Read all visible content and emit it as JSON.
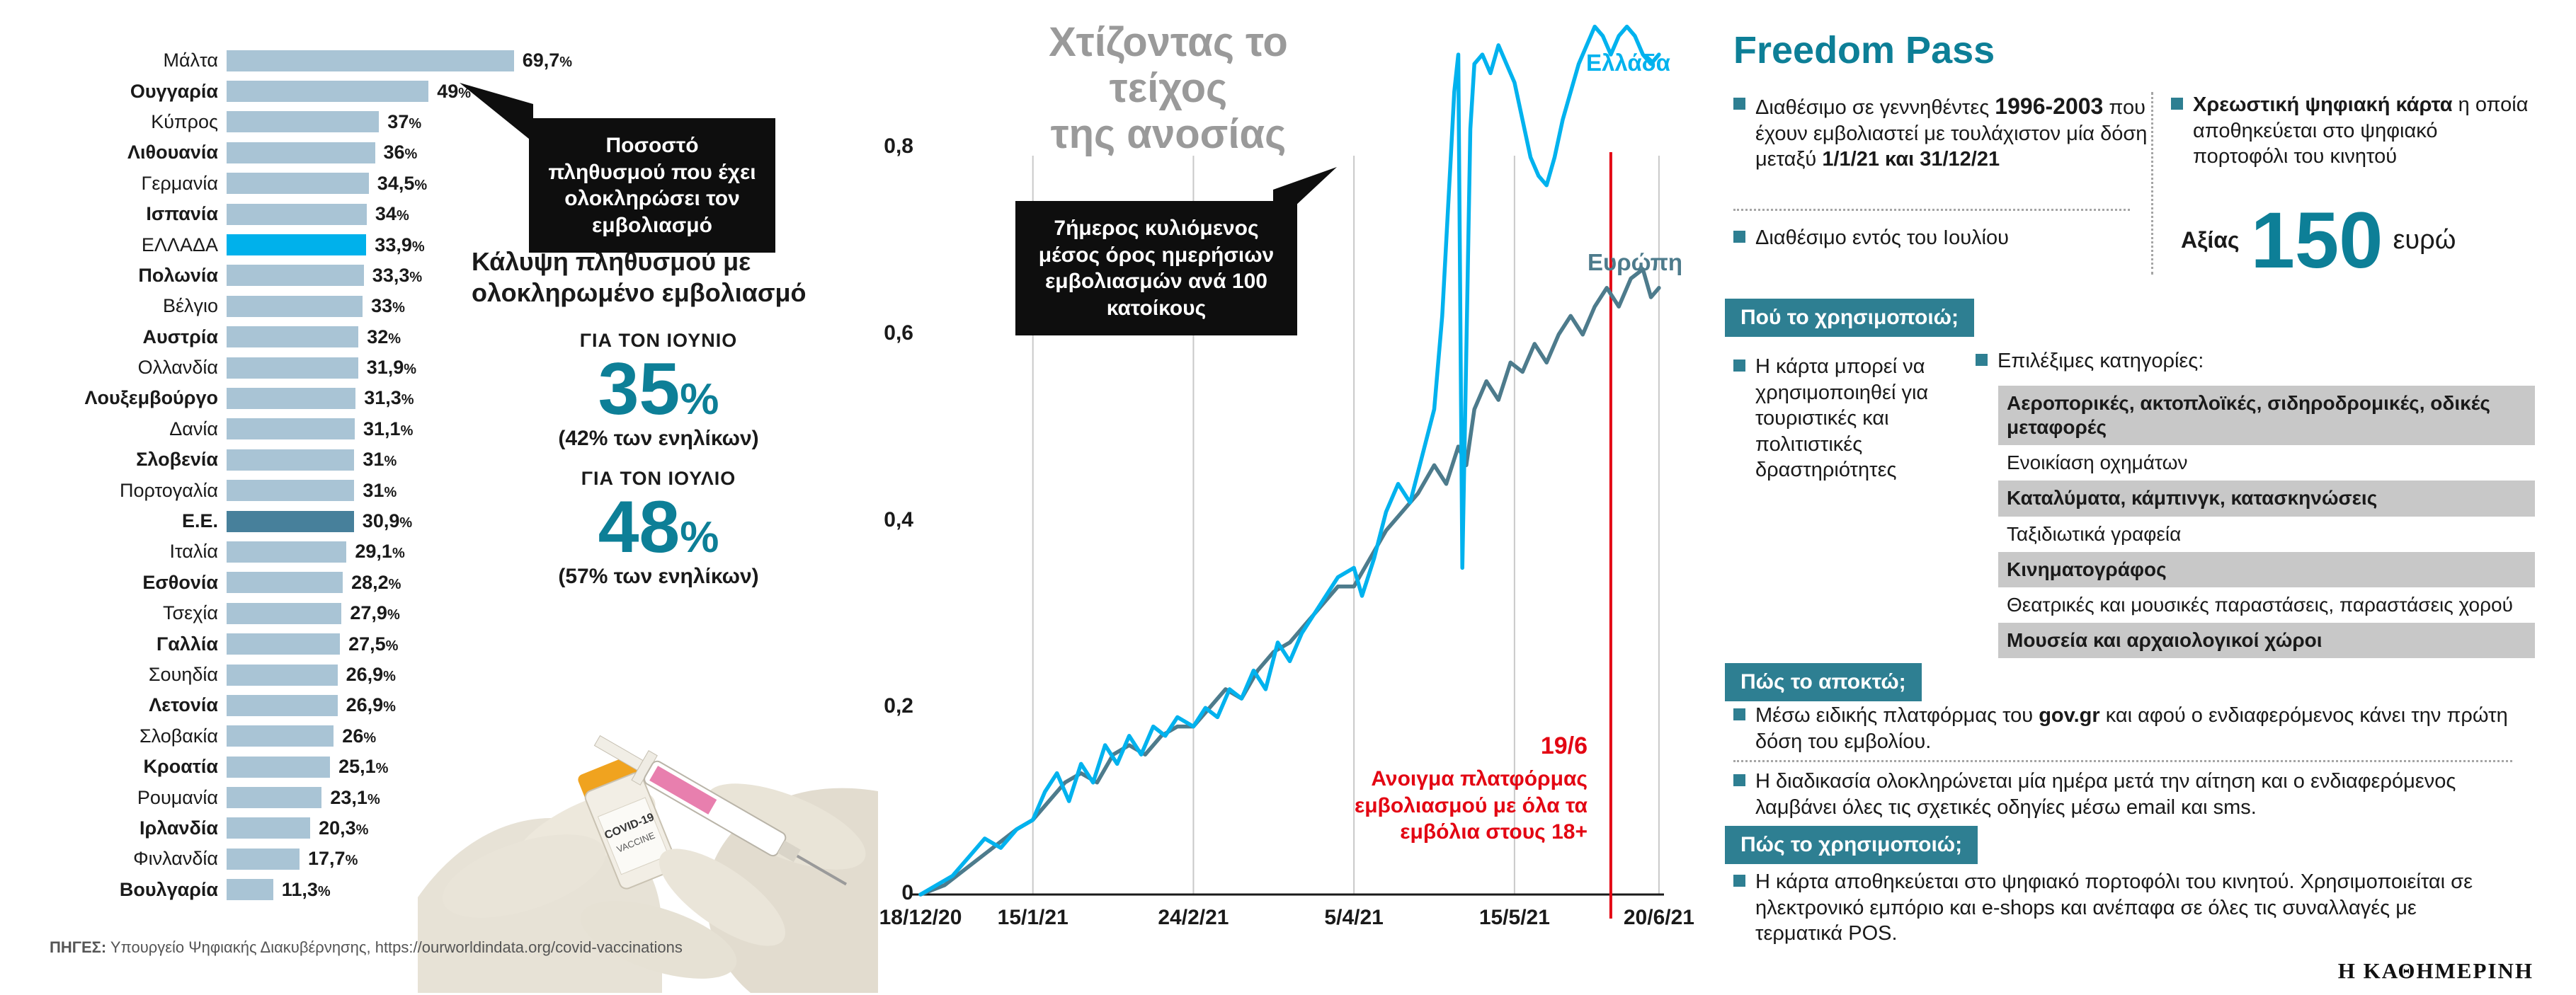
{
  "page": {
    "brand_logo": "Η ΚΑΘΗΜΕΡΙΝΗ",
    "sources_label": "ΠΗΓΕΣ:",
    "sources_text": " Υπουργείο Ψηφιακής Διακυβέρνησης, ",
    "sources_link": "https://ourworldindata.org/covid-vaccinations"
  },
  "colors": {
    "bar_default": "#a9c4d5",
    "bar_greece": "#00b1eb",
    "bar_eu": "#47809b",
    "teal": "#0d7f97",
    "badge_bg": "#2e7f92",
    "callout_bg": "#0e0e0e",
    "red": "#e30613",
    "title_gray": "#9a9a9a",
    "highlight_gray": "#c8c8c8",
    "line_greece": "#00b2ee",
    "line_europe": "#4d7b8c",
    "grid": "#c9c9c9",
    "axis": "#1a1a1a"
  },
  "chart_data": [
    {
      "id": "vaccination-completed-by-country",
      "type": "bar",
      "orientation": "horizontal",
      "callout": "Ποσοστό πληθυσμού που έχει ολοκληρώσει τον εμβολιασμό",
      "unit": "%",
      "xlim": [
        0,
        75
      ],
      "items": [
        {
          "name": "Μάλτα",
          "value": 69.7,
          "label": "69,7"
        },
        {
          "name": "Ουγγαρία",
          "value": 49,
          "label": "49"
        },
        {
          "name": "Κύπρος",
          "value": 37,
          "label": "37"
        },
        {
          "name": "Λιθουανία",
          "value": 36,
          "label": "36"
        },
        {
          "name": "Γερμανία",
          "value": 34.5,
          "label": "34,5"
        },
        {
          "name": "Ισπανία",
          "value": 34,
          "label": "34"
        },
        {
          "name": "ΕΛΛΑΔΑ",
          "value": 33.9,
          "label": "33,9",
          "highlight": "greece"
        },
        {
          "name": "Πολωνία",
          "value": 33.3,
          "label": "33,3"
        },
        {
          "name": "Βέλγιο",
          "value": 33,
          "label": "33"
        },
        {
          "name": "Αυστρία",
          "value": 32,
          "label": "32"
        },
        {
          "name": "Ολλανδία",
          "value": 31.9,
          "label": "31,9"
        },
        {
          "name": "Λουξεμβούργο",
          "value": 31.3,
          "label": "31,3"
        },
        {
          "name": "Δανία",
          "value": 31.1,
          "label": "31,1"
        },
        {
          "name": "Σλοβενία",
          "value": 31,
          "label": "31"
        },
        {
          "name": "Πορτογαλία",
          "value": 31,
          "label": "31"
        },
        {
          "name": "Ε.Ε.",
          "value": 30.9,
          "label": "30,9",
          "highlight": "eu"
        },
        {
          "name": "Ιταλία",
          "value": 29.1,
          "label": "29,1"
        },
        {
          "name": "Εσθονία",
          "value": 28.2,
          "label": "28,2"
        },
        {
          "name": "Τσεχία",
          "value": 27.9,
          "label": "27,9"
        },
        {
          "name": "Γαλλία",
          "value": 27.5,
          "label": "27,5"
        },
        {
          "name": "Σουηδία",
          "value": 26.9,
          "label": "26,9"
        },
        {
          "name": "Λετονία",
          "value": 26.9,
          "label": "26,9"
        },
        {
          "name": "Σλοβακία",
          "value": 26,
          "label": "26"
        },
        {
          "name": "Κροατία",
          "value": 25.1,
          "label": "25,1"
        },
        {
          "name": "Ρουμανία",
          "value": 23.1,
          "label": "23,1"
        },
        {
          "name": "Ιρλανδία",
          "value": 20.3,
          "label": "20,3"
        },
        {
          "name": "Φινλανδία",
          "value": 17.7,
          "label": "17,7"
        },
        {
          "name": "Βουλγαρία",
          "value": 11.3,
          "label": "11,3"
        }
      ]
    },
    {
      "id": "daily-vaccinations-rolling-average",
      "type": "line",
      "title_lines": [
        "Χτίζοντας το τείχος",
        "της ανοσίας"
      ],
      "note": "7ήμερος κυλιόμενος μέσος όρος ημερήσιων εμβολιασμών ανά 100 κατοίκους",
      "ylim": [
        0,
        0.95
      ],
      "grid": "vertical",
      "y_ticks": [
        {
          "v": 0,
          "label": "0"
        },
        {
          "v": 0.2,
          "label": "0,2"
        },
        {
          "v": 0.4,
          "label": "0,4"
        },
        {
          "v": 0.6,
          "label": "0,6"
        },
        {
          "v": 0.8,
          "label": "0,8"
        }
      ],
      "x_ticks": [
        {
          "day": 0,
          "label": "18/12/20"
        },
        {
          "day": 28,
          "label": "15/1/21"
        },
        {
          "day": 68,
          "label": "24/2/21"
        },
        {
          "day": 108,
          "label": "5/4/21"
        },
        {
          "day": 148,
          "label": "15/5/21"
        },
        {
          "day": 184,
          "label": "20/6/21"
        }
      ],
      "series": [
        {
          "name": "Ευρώπη",
          "color": "#4d7b8c",
          "points": [
            [
              0,
              0
            ],
            [
              6,
              0.01
            ],
            [
              12,
              0.03
            ],
            [
              18,
              0.05
            ],
            [
              24,
              0.07
            ],
            [
              28,
              0.08
            ],
            [
              32,
              0.1
            ],
            [
              36,
              0.12
            ],
            [
              40,
              0.13
            ],
            [
              44,
              0.12
            ],
            [
              48,
              0.15
            ],
            [
              52,
              0.16
            ],
            [
              56,
              0.15
            ],
            [
              60,
              0.17
            ],
            [
              64,
              0.18
            ],
            [
              68,
              0.18
            ],
            [
              72,
              0.2
            ],
            [
              76,
              0.22
            ],
            [
              80,
              0.21
            ],
            [
              84,
              0.24
            ],
            [
              88,
              0.26
            ],
            [
              92,
              0.27
            ],
            [
              96,
              0.29
            ],
            [
              100,
              0.31
            ],
            [
              104,
              0.33
            ],
            [
              108,
              0.33
            ],
            [
              112,
              0.36
            ],
            [
              116,
              0.39
            ],
            [
              120,
              0.41
            ],
            [
              124,
              0.43
            ],
            [
              128,
              0.46
            ],
            [
              131,
              0.44
            ],
            [
              134,
              0.48
            ],
            [
              136,
              0.46
            ],
            [
              138,
              0.52
            ],
            [
              141,
              0.55
            ],
            [
              144,
              0.53
            ],
            [
              147,
              0.57
            ],
            [
              150,
              0.56
            ],
            [
              153,
              0.59
            ],
            [
              156,
              0.57
            ],
            [
              159,
              0.6
            ],
            [
              162,
              0.62
            ],
            [
              165,
              0.6
            ],
            [
              168,
              0.63
            ],
            [
              171,
              0.65
            ],
            [
              174,
              0.63
            ],
            [
              177,
              0.66
            ],
            [
              180,
              0.67
            ],
            [
              182,
              0.64
            ],
            [
              184,
              0.65
            ]
          ]
        },
        {
          "name": "Ελλάδα",
          "color": "#00b2ee",
          "points": [
            [
              0,
              0
            ],
            [
              4,
              0.01
            ],
            [
              8,
              0.02
            ],
            [
              12,
              0.04
            ],
            [
              16,
              0.06
            ],
            [
              20,
              0.05
            ],
            [
              24,
              0.07
            ],
            [
              28,
              0.08
            ],
            [
              31,
              0.11
            ],
            [
              34,
              0.13
            ],
            [
              37,
              0.1
            ],
            [
              40,
              0.14
            ],
            [
              43,
              0.12
            ],
            [
              46,
              0.16
            ],
            [
              49,
              0.14
            ],
            [
              52,
              0.17
            ],
            [
              55,
              0.15
            ],
            [
              58,
              0.18
            ],
            [
              61,
              0.17
            ],
            [
              64,
              0.19
            ],
            [
              68,
              0.18
            ],
            [
              71,
              0.2
            ],
            [
              74,
              0.19
            ],
            [
              77,
              0.22
            ],
            [
              80,
              0.21
            ],
            [
              83,
              0.24
            ],
            [
              86,
              0.22
            ],
            [
              89,
              0.27
            ],
            [
              92,
              0.25
            ],
            [
              95,
              0.28
            ],
            [
              98,
              0.3
            ],
            [
              101,
              0.32
            ],
            [
              104,
              0.34
            ],
            [
              108,
              0.35
            ],
            [
              110,
              0.32
            ],
            [
              113,
              0.36
            ],
            [
              116,
              0.41
            ],
            [
              119,
              0.44
            ],
            [
              122,
              0.42
            ],
            [
              125,
              0.47
            ],
            [
              128,
              0.52
            ],
            [
              130,
              0.62
            ],
            [
              132,
              0.78
            ],
            [
              133,
              0.86
            ],
            [
              134,
              0.9
            ],
            [
              135,
              0.35
            ],
            [
              136,
              0.58
            ],
            [
              137,
              0.82
            ],
            [
              138,
              0.89
            ],
            [
              140,
              0.9
            ],
            [
              142,
              0.88
            ],
            [
              144,
              0.91
            ],
            [
              146,
              0.89
            ],
            [
              148,
              0.87
            ],
            [
              150,
              0.83
            ],
            [
              152,
              0.79
            ],
            [
              154,
              0.77
            ],
            [
              156,
              0.76
            ],
            [
              158,
              0.79
            ],
            [
              160,
              0.83
            ],
            [
              162,
              0.86
            ],
            [
              164,
              0.89
            ],
            [
              166,
              0.91
            ],
            [
              168,
              0.93
            ],
            [
              170,
              0.92
            ],
            [
              172,
              0.9
            ],
            [
              174,
              0.92
            ],
            [
              176,
              0.93
            ],
            [
              178,
              0.92
            ],
            [
              180,
              0.9
            ],
            [
              182,
              0.89
            ],
            [
              184,
              0.9
            ]
          ]
        }
      ],
      "event": {
        "date_label": "19/6",
        "text": "Ανοιγμα πλατφόρμας εμβολιασμού με όλα τα εμβόλια στους 18+",
        "day": 172
      }
    }
  ],
  "coverage": {
    "heading": "Κάλυψη πληθυσμού με ολοκληρωμένο εμβολιασμό",
    "june_label": "ΓΙΑ ΤΟΝ ΙΟΥΝΙΟ",
    "june_value": "35",
    "june_unit": "%",
    "june_note": "(42% των ενηλίκων)",
    "july_label": "ΓΙΑ ΤΟΝ ΙΟΥΛΙΟ",
    "july_value": "48",
    "july_unit": "%",
    "july_note": "(57% των ενηλίκων)"
  },
  "photo": {
    "vial_line1": "COVID-19",
    "vial_line2": "VACCINE"
  },
  "freedom_pass": {
    "title": "Freedom Pass",
    "eligibility": {
      "part1": "Διαθέσιμο σε γεννηθέντες ",
      "strong1": "1996-2003",
      "part2": " που έχουν εμβολιαστεί με τουλάχιστον μία δόση μεταξύ ",
      "strong2": "1/1/21 και 31/12/21"
    },
    "availability": "Διαθέσιμο εντός του Ιουλίου",
    "card": {
      "strong": "Χρεωστική ψηφιακή κάρτα",
      "rest": " η οποία αποθηκεύεται στο ψηφιακό πορτοφόλι του κινητού"
    },
    "value": {
      "label": "Αξίας",
      "amount": "150",
      "currency": "ευρώ"
    },
    "where_title": "Πού το χρησιμοποιώ;",
    "where_text": "Η κάρτα μπορεί να χρησιμοποιηθεί για τουριστικές και πολιτιστικές δραστηριότητες",
    "categories_label": "Επιλέξιμες κατηγορίες:",
    "categories": [
      {
        "text": "Αεροπορικές, ακτοπλοϊκές, σιδηροδρομικές, οδικές μεταφορές",
        "highlight": true
      },
      {
        "text": "Ενοικίαση οχημάτων",
        "highlight": false
      },
      {
        "text": "Καταλύματα, κάμπινγκ, κατασκηνώσεις",
        "highlight": true
      },
      {
        "text": "Ταξιδιωτικά γραφεία",
        "highlight": false
      },
      {
        "text": "Κινηματογράφος",
        "highlight": true
      },
      {
        "text": "Θεατρικές και μουσικές παραστάσεις, παραστάσεις χορού",
        "highlight": false
      },
      {
        "text": "Μουσεία και αρχαιολογικοί χώροι",
        "highlight": true
      }
    ],
    "how_get_title": "Πώς το αποκτώ;",
    "how_get_items": [
      {
        "part1": "Μέσω ειδικής πλατφόρμας του ",
        "strong": "gov.gr",
        "part2": " και αφού ο ενδιαφερόμενος κάνει την πρώτη δόση του εμβολίου."
      },
      {
        "part1": "Η διαδικασία ολοκληρώνεται μία ημέρα μετά την αίτηση και ο ενδιαφερόμενος λαμβάνει όλες τις σχετικές οδηγίες μέσω email και sms.",
        "strong": "",
        "part2": ""
      }
    ],
    "how_use_title": "Πώς το χρησιμοποιώ;",
    "how_use_text": "Η κάρτα αποθηκεύεται στο ψηφιακό πορτοφόλι του κινητού. Χρησιμοποιείται σε ηλεκτρονικό εμπόριο και e-shops και ανέπαφα σε όλες τις συναλλαγές με τερματικά POS."
  }
}
